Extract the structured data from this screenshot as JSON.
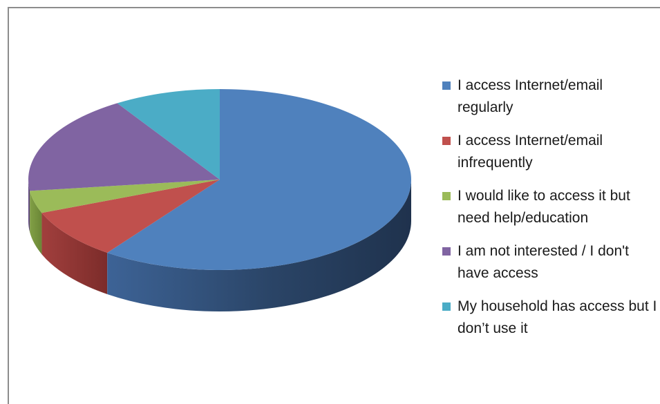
{
  "chart_data": {
    "type": "pie",
    "style": "3d",
    "categories": [
      "I access Internet/email regularly",
      "I access Internet/email infrequently",
      "I would like to access it but need help/education",
      "I am not interested / I don't have access",
      "My household has access but I don’t use it"
    ],
    "values": [
      60,
      9,
      4,
      18,
      9
    ],
    "unit": "%",
    "colors": [
      "#4f81bd",
      "#c0504d",
      "#9bbb59",
      "#8064a2",
      "#4bacc6"
    ],
    "legend": "right",
    "title": ""
  },
  "legend": {
    "items": [
      {
        "label": "I access Internet/email regularly"
      },
      {
        "label": "I access Internet/email infrequently"
      },
      {
        "label": "I would like to access it but need help/education"
      },
      {
        "label": "I am not interested / I don't have access"
      },
      {
        "label": "My household has access but I don’t use it"
      }
    ]
  }
}
